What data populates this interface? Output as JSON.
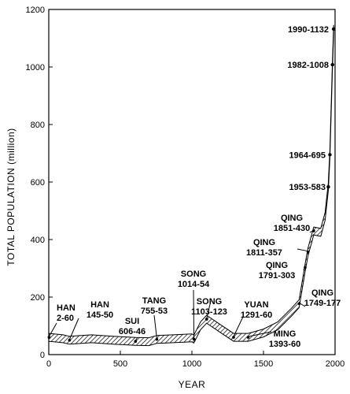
{
  "chart_data": {
    "type": "line",
    "title": "",
    "xlabel": "YEAR",
    "ylabel": "TOTAL POPULATION (million)",
    "xlim": [
      0,
      2000
    ],
    "ylim": [
      0,
      1200
    ],
    "x_ticks": [
      0,
      500,
      1000,
      1500,
      2000
    ],
    "y_ticks": [
      0,
      200,
      400,
      600,
      800,
      1000,
      1200
    ],
    "grid": false,
    "legend": "none",
    "series": [
      {
        "x": [
          0,
          2,
          100,
          145,
          300,
          450,
          606,
          700,
          755,
          900,
          1000,
          1014,
          1060,
          1103,
          1200,
          1291,
          1393,
          1500,
          1600,
          1700,
          1749,
          1791,
          1811,
          1851,
          1900,
          1930,
          1953,
          1964,
          1982,
          1990
        ],
        "values": [
          58,
          60,
          55,
          50,
          55,
          50,
          46,
          45,
          53,
          56,
          58,
          54,
          100,
          123,
          90,
          60,
          60,
          75,
          100,
          150,
          177,
          303,
          357,
          430,
          425,
          480,
          583,
          695,
          1008,
          1132
        ]
      }
    ],
    "annotations": [
      {
        "id": "han-2",
        "line1": "HAN",
        "line2": "2-60",
        "year": 2,
        "value": 60
      },
      {
        "id": "han-145",
        "line1": "HAN",
        "line2": "145-50",
        "year": 145,
        "value": 50
      },
      {
        "id": "sui-606",
        "line1": "SUI",
        "line2": "606-46",
        "year": 606,
        "value": 46
      },
      {
        "id": "tang-755",
        "line1": "TANG",
        "line2": "755-53",
        "year": 755,
        "value": 53
      },
      {
        "id": "song-1014",
        "line1": "SONG",
        "line2": "1014-54",
        "year": 1014,
        "value": 54
      },
      {
        "id": "song-1103",
        "line1": "SONG",
        "line2": "1103-123",
        "year": 1103,
        "value": 123
      },
      {
        "id": "yuan-1291",
        "line1": "YUAN",
        "line2": "1291-60",
        "year": 1291,
        "value": 60
      },
      {
        "id": "ming-1393",
        "line1": "MING",
        "line2": "1393-60",
        "year": 1393,
        "value": 60
      },
      {
        "id": "qing-1749",
        "line1": "QING",
        "line2": "1749-177",
        "year": 1749,
        "value": 177
      },
      {
        "id": "qing-1791",
        "line1": "QING",
        "line2": "1791-303",
        "year": 1791,
        "value": 303
      },
      {
        "id": "qing-1811",
        "line1": "QING",
        "line2": "1811-357",
        "year": 1811,
        "value": 357
      },
      {
        "id": "qing-1851",
        "line1": "QING",
        "line2": "1851-430",
        "year": 1851,
        "value": 430
      },
      {
        "id": "pt-1953",
        "line1": "1953-583",
        "line2": "",
        "year": 1953,
        "value": 583
      },
      {
        "id": "pt-1964",
        "line1": "1964-695",
        "line2": "",
        "year": 1964,
        "value": 695
      },
      {
        "id": "pt-1982",
        "line1": "1982-1008",
        "line2": "",
        "year": 1982,
        "value": 1008
      },
      {
        "id": "pt-1990",
        "line1": "1990-1132",
        "line2": "",
        "year": 1990,
        "value": 1132
      }
    ]
  }
}
